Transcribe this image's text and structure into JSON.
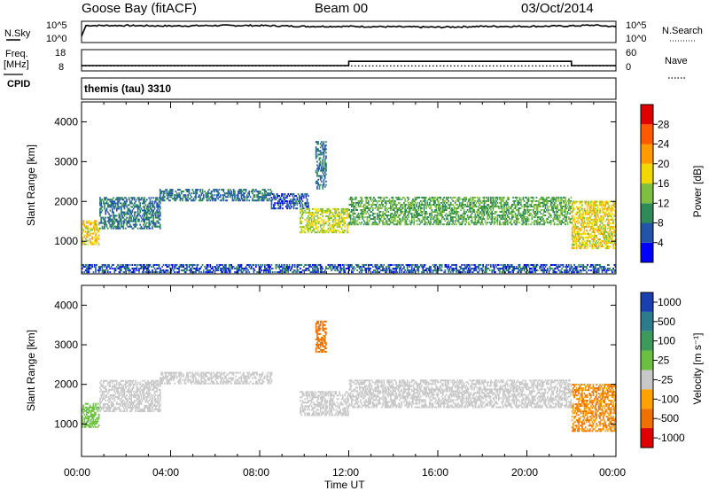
{
  "header": {
    "station": "Goose Bay (fitACF)",
    "beam": "Beam 00",
    "date": "03/Oct/2014"
  },
  "noise_panel": {
    "left_label": "N.Sky",
    "right_label": "N.Search",
    "y_top": "10^5",
    "y_bottom": "10^0",
    "right_top": "10^5",
    "right_bottom": "10^0"
  },
  "freq_panel": {
    "left_label_1": "Freq.",
    "left_label_2": "[MHz]",
    "y_top": "18",
    "y_bottom": "8",
    "right_label": "Nave",
    "right_top": "60",
    "right_bottom": "0"
  },
  "cpid_panel": {
    "left_label": "CPID",
    "program": "themis (tau) 3310"
  },
  "power_panel": {
    "ylabel": "Slant Range [km]",
    "colorbar_label": "Power [dB]",
    "colorbar_ticks": [
      "4",
      "8",
      "12",
      "16",
      "20",
      "24",
      "28"
    ],
    "colorbar_colors": [
      "#0000ff",
      "#2255aa",
      "#2e8b57",
      "#7fbf3f",
      "#f0d800",
      "#ff9a00",
      "#ff5a00",
      "#e00000"
    ]
  },
  "velocity_panel": {
    "ylabel": "Slant Range [km]",
    "colorbar_label": "Velocity [m s⁻¹]",
    "colorbar_ticks": [
      "1000",
      "500",
      "100",
      "25",
      "-25",
      "-100",
      "-500",
      "-1000"
    ],
    "colorbar_colors": [
      "#1a3fb0",
      "#2c7c8c",
      "#3c9a5a",
      "#6cc040",
      "#c8c8c8",
      "#ffa200",
      "#f07000",
      "#e00000"
    ]
  },
  "xaxis": {
    "label": "Time UT",
    "ticks": [
      "00:00",
      "04:00",
      "08:00",
      "12:00",
      "16:00",
      "20:00",
      "00:00"
    ]
  },
  "chart_data": [
    {
      "type": "line",
      "title": "Goose Bay (fitACF) Beam 00 03/Oct/2014",
      "series": [
        {
          "name": "N.Sky",
          "x_hours": [
            0,
            0.2,
            2,
            4,
            6,
            8,
            10,
            12,
            14,
            16,
            18,
            20,
            22,
            23,
            24
          ],
          "values_log10": [
            1.5,
            4.0,
            4.0,
            3.9,
            4.0,
            4.0,
            3.8,
            3.8,
            3.7,
            3.6,
            3.8,
            3.8,
            3.9,
            4.1,
            3.7
          ]
        },
        {
          "name": "N.Search",
          "x_hours": [
            0,
            24
          ],
          "values_log10": [
            null,
            null
          ]
        }
      ],
      "ylim": [
        0,
        5
      ],
      "xlim": [
        0,
        24
      ]
    },
    {
      "type": "line",
      "series": [
        {
          "name": "Freq.",
          "x_hours": [
            0,
            12,
            12,
            22,
            22,
            24
          ],
          "values": [
            10.5,
            10.5,
            12.5,
            12.5,
            10.5,
            10.5
          ]
        },
        {
          "name": "Nave",
          "x_hours": [
            0,
            24
          ],
          "values": [
            14,
            14
          ]
        }
      ],
      "ylim": [
        8,
        18
      ],
      "y2lim": [
        0,
        60
      ],
      "xlim": [
        0,
        24
      ]
    },
    {
      "type": "heatmap",
      "xlabel": "Time UT",
      "ylabel": "Slant Range [km]",
      "ylim": [
        180,
        4500
      ],
      "xlim": [
        0,
        24
      ],
      "yticks": [
        1000,
        2000,
        3000,
        4000
      ],
      "colorbar": {
        "label": "Power [dB]",
        "range": [
          0,
          30
        ]
      },
      "regions": [
        {
          "t": [
            0,
            0.8
          ],
          "r": [
            900,
            1500
          ],
          "value": 18
        },
        {
          "t": [
            0.8,
            3.5
          ],
          "r": [
            1300,
            2100
          ],
          "value": 8
        },
        {
          "t": [
            3.5,
            8.5
          ],
          "r": [
            2000,
            2300
          ],
          "value": 8
        },
        {
          "t": [
            8.5,
            10.2
          ],
          "r": [
            1800,
            2200
          ],
          "value": 6
        },
        {
          "t": [
            9.8,
            12
          ],
          "r": [
            1200,
            1800
          ],
          "value": 16
        },
        {
          "t": [
            10.5,
            11
          ],
          "r": [
            2300,
            3500
          ],
          "value": 8
        },
        {
          "t": [
            12,
            22
          ],
          "r": [
            1400,
            2100
          ],
          "value": 12
        },
        {
          "t": [
            22,
            24
          ],
          "r": [
            800,
            2000
          ],
          "value": 18
        },
        {
          "t": [
            0,
            24
          ],
          "r": [
            200,
            400
          ],
          "value": 6
        }
      ]
    },
    {
      "type": "heatmap",
      "xlabel": "Time UT",
      "ylabel": "Slant Range [km]",
      "ylim": [
        180,
        4500
      ],
      "xlim": [
        0,
        24
      ],
      "yticks": [
        1000,
        2000,
        3000,
        4000
      ],
      "colorbar": {
        "label": "Velocity [m s⁻¹]",
        "range": [
          -1000,
          1000
        ]
      },
      "regions": [
        {
          "t": [
            0,
            0.8
          ],
          "r": [
            900,
            1500
          ],
          "value": 50
        },
        {
          "t": [
            0.8,
            3.5
          ],
          "r": [
            1300,
            2100
          ],
          "value": 0
        },
        {
          "t": [
            3.5,
            8.5
          ],
          "r": [
            2000,
            2300
          ],
          "value": 0
        },
        {
          "t": [
            9.8,
            12
          ],
          "r": [
            1200,
            1800
          ],
          "value": 0
        },
        {
          "t": [
            10.5,
            11
          ],
          "r": [
            2800,
            3600
          ],
          "value": -300
        },
        {
          "t": [
            12,
            22
          ],
          "r": [
            1400,
            2100
          ],
          "value": 0
        },
        {
          "t": [
            22,
            24
          ],
          "r": [
            800,
            2000
          ],
          "value": -100
        }
      ]
    }
  ]
}
